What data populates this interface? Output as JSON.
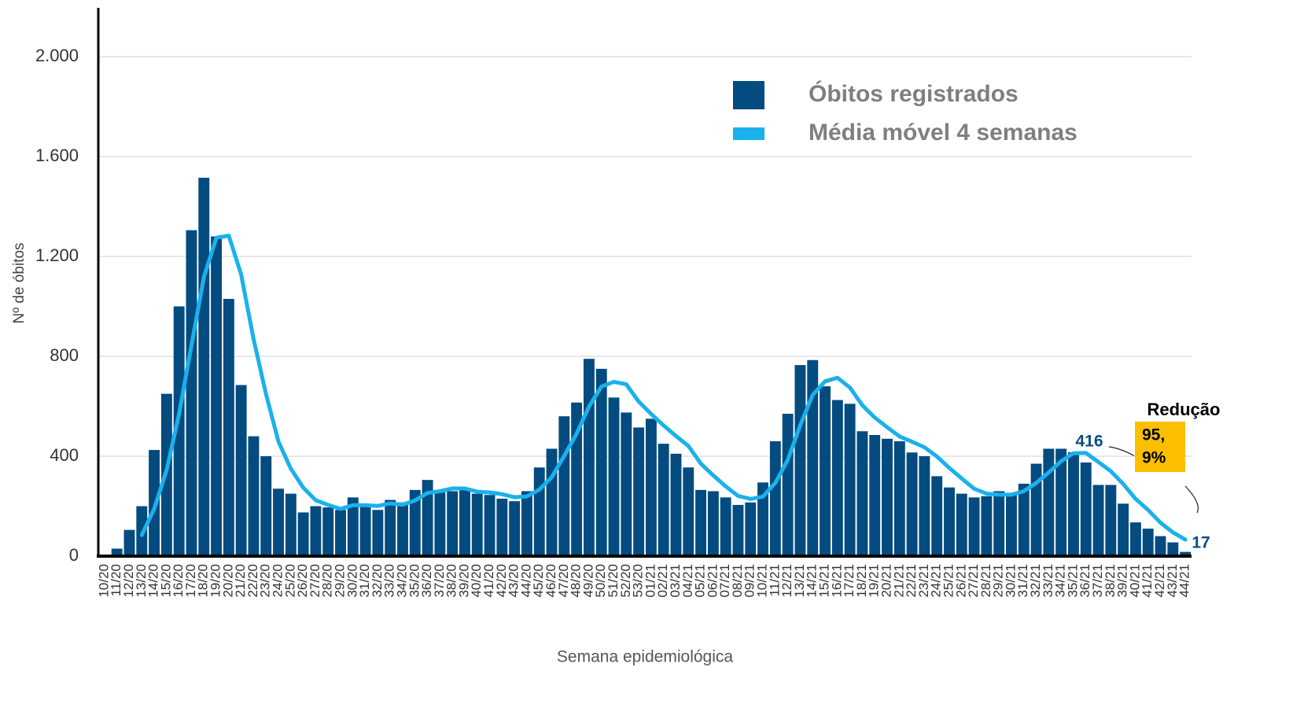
{
  "chart_data": {
    "type": "bar",
    "x_label": "Semana epidemiológica",
    "y_label": "Nº de óbitos",
    "categories": [
      "10/20",
      "11/20",
      "12/20",
      "13/20",
      "14/20",
      "15/20",
      "16/20",
      "17/20",
      "18/20",
      "19/20",
      "20/20",
      "21/20",
      "22/20",
      "23/20",
      "24/20",
      "25/20",
      "26/20",
      "27/20",
      "28/20",
      "29/20",
      "30/20",
      "31/20",
      "32/20",
      "33/20",
      "34/20",
      "35/20",
      "36/20",
      "37/20",
      "38/20",
      "39/20",
      "40/20",
      "41/20",
      "42/20",
      "43/20",
      "44/20",
      "45/20",
      "46/20",
      "47/20",
      "48/20",
      "49/20",
      "50/20",
      "51/20",
      "52/20",
      "53/20",
      "01/21",
      "02/21",
      "03/21",
      "04/21",
      "05/21",
      "06/21",
      "07/21",
      "08/21",
      "09/21",
      "10/21",
      "11/21",
      "12/21",
      "13/21",
      "14/21",
      "15/21",
      "16/21",
      "17/21",
      "18/21",
      "19/21",
      "20/21",
      "21/21",
      "22/21",
      "23/21",
      "24/21",
      "25/21",
      "26/21",
      "27/21",
      "28/21",
      "29/21",
      "30/21",
      "31/21",
      "32/21",
      "33/21",
      "34/21",
      "35/21",
      "36/21",
      "37/21",
      "38/21",
      "39/21",
      "40/21",
      "41/21",
      "42/21",
      "43/21",
      "44/21"
    ],
    "series": [
      {
        "name": "Óbitos registrados",
        "type": "bar",
        "color": "#044b7f",
        "values": [
          2,
          30,
          105,
          200,
          425,
          650,
          1000,
          1305,
          1515,
          1280,
          1030,
          685,
          480,
          400,
          270,
          250,
          175,
          200,
          195,
          185,
          235,
          200,
          185,
          225,
          215,
          265,
          305,
          255,
          260,
          265,
          250,
          245,
          230,
          220,
          260,
          355,
          430,
          560,
          615,
          790,
          750,
          635,
          575,
          515,
          550,
          450,
          410,
          355,
          265,
          260,
          235,
          205,
          215,
          295,
          460,
          570,
          765,
          785,
          680,
          625,
          610,
          500,
          485,
          470,
          460,
          415,
          400,
          320,
          275,
          250,
          235,
          240,
          260,
          250,
          290,
          370,
          430,
          430,
          416,
          375,
          285,
          285,
          210,
          135,
          110,
          80,
          55,
          17
        ]
      },
      {
        "name": "Média móvel 4 semanas",
        "type": "line",
        "color": "#1ab1ec",
        "values": [
          null,
          null,
          null,
          84,
          190,
          345,
          569,
          845,
          1118,
          1275,
          1283,
          1128,
          869,
          649,
          459,
          350,
          274,
          224,
          205,
          189,
          204,
          204,
          201,
          211,
          206,
          223,
          253,
          260,
          271,
          271,
          258,
          255,
          248,
          236,
          239,
          266,
          316,
          401,
          490,
          599,
          679,
          698,
          688,
          619,
          569,
          523,
          481,
          441,
          370,
          323,
          279,
          241,
          229,
          238,
          294,
          385,
          523,
          645,
          700,
          714,
          675,
          604,
          555,
          516,
          479,
          458,
          436,
          399,
          353,
          311,
          270,
          250,
          246,
          246,
          260,
          293,
          335,
          380,
          412,
          413,
          377,
          340,
          289,
          229,
          185,
          134,
          95,
          66
        ]
      }
    ],
    "ylim": [
      0,
      2200
    ],
    "yticks": [
      0,
      400,
      800,
      {
        "value": 1200,
        "label": "1.200"
      },
      {
        "value": 1600,
        "label": "1.600"
      },
      {
        "value": 2000,
        "label": "2.000"
      }
    ],
    "grid": true,
    "legend": "top-right",
    "annotation": {
      "title": "Redução",
      "lines": [
        "95,",
        "9%"
      ]
    }
  }
}
